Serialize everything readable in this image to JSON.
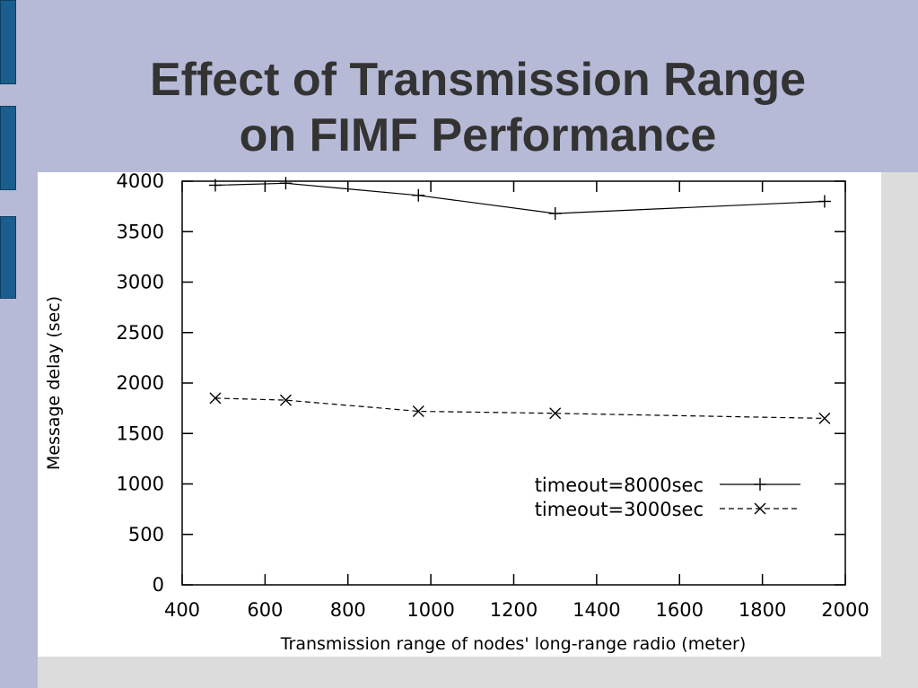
{
  "slide": {
    "title_line1": "Effect of Transmission Range",
    "title_line2": "on FIMF Performance"
  },
  "colors": {
    "band": "#b6bad7",
    "tab": "#1a5e8e",
    "title": "#333333",
    "background": "#dcdcdc"
  },
  "chart_data": {
    "type": "line",
    "title": "",
    "xlabel": "Transmission range of nodes' long-range radio (meter)",
    "ylabel": "Message delay (sec)",
    "xlim": [
      400,
      2000
    ],
    "ylim": [
      0,
      4000
    ],
    "xticks": [
      400,
      600,
      800,
      1000,
      1200,
      1400,
      1600,
      1800,
      2000
    ],
    "yticks": [
      0,
      500,
      1000,
      1500,
      2000,
      2500,
      3000,
      3500,
      4000
    ],
    "grid": false,
    "legend_position": "bottom-right",
    "series": [
      {
        "name": "timeout=8000sec",
        "marker": "plus",
        "line_style": "solid",
        "x": [
          480,
          650,
          970,
          1300,
          1950
        ],
        "y": [
          3960,
          3980,
          3860,
          3680,
          3800
        ]
      },
      {
        "name": "timeout=3000sec",
        "marker": "cross",
        "line_style": "dashed",
        "x": [
          480,
          650,
          970,
          1300,
          1950
        ],
        "y": [
          1850,
          1830,
          1720,
          1700,
          1650
        ]
      }
    ]
  }
}
